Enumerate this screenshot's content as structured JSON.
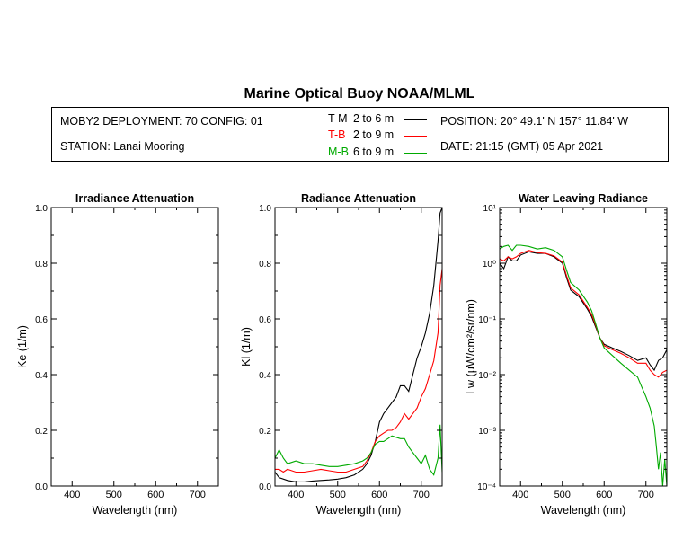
{
  "header": {
    "title": "Marine Optical Buoy NOAA/MLML",
    "deployment": "MOBY2 DEPLOYMENT: 70 CONFIG: 01",
    "station": "STATION: Lanai Mooring",
    "position": "POSITION: 20° 49.1' N   157° 11.84' W",
    "date": "DATE: 21:15 (GMT) 05 Apr 2021"
  },
  "legend": [
    {
      "label": "T-M",
      "range": "2 to 6  m",
      "color": "#000000"
    },
    {
      "label": "T-B",
      "range": "2 to 9  m",
      "color": "#ff0000"
    },
    {
      "label": "M-B",
      "range": "6 to 9  m",
      "color": "#00aa00"
    }
  ],
  "chart_data": [
    {
      "type": "line",
      "title": "Irradiance Attenuation",
      "xlabel": "Wavelength (nm)",
      "ylabel": "Ke  (1/m)",
      "xlim": [
        350,
        750
      ],
      "ylim": [
        0,
        1
      ],
      "xticks": [
        "400",
        "500",
        "600",
        "700"
      ],
      "yticks": [
        "0.0",
        "0.2",
        "0.4",
        "0.6",
        "0.8",
        "1.0"
      ],
      "series": []
    },
    {
      "type": "line",
      "title": "Radiance Attenuation",
      "xlabel": "Wavelength (nm)",
      "ylabel": "Kl  (1/m)",
      "xlim": [
        350,
        750
      ],
      "ylim": [
        0,
        1
      ],
      "xticks": [
        "400",
        "500",
        "600",
        "700"
      ],
      "yticks": [
        "0.0",
        "0.2",
        "0.4",
        "0.6",
        "0.8",
        "1.0"
      ],
      "series": [
        {
          "name": "T-M",
          "color": "#000000",
          "x": [
            350,
            360,
            380,
            400,
            420,
            440,
            460,
            480,
            500,
            520,
            540,
            560,
            570,
            580,
            590,
            600,
            610,
            620,
            630,
            640,
            650,
            660,
            670,
            680,
            690,
            700,
            710,
            720,
            730,
            740,
            745,
            750
          ],
          "y": [
            0.05,
            0.03,
            0.02,
            0.015,
            0.015,
            0.018,
            0.02,
            0.022,
            0.025,
            0.03,
            0.04,
            0.06,
            0.08,
            0.11,
            0.16,
            0.23,
            0.26,
            0.28,
            0.3,
            0.32,
            0.36,
            0.36,
            0.34,
            0.4,
            0.46,
            0.5,
            0.55,
            0.62,
            0.72,
            0.88,
            0.98,
            1.0
          ]
        },
        {
          "name": "T-B",
          "color": "#ff0000",
          "x": [
            350,
            360,
            370,
            380,
            400,
            420,
            440,
            460,
            480,
            500,
            520,
            540,
            560,
            570,
            580,
            590,
            600,
            610,
            620,
            630,
            640,
            650,
            660,
            670,
            680,
            690,
            700,
            710,
            720,
            730,
            740,
            745,
            750
          ],
          "y": [
            0.06,
            0.06,
            0.05,
            0.06,
            0.05,
            0.05,
            0.055,
            0.06,
            0.055,
            0.05,
            0.05,
            0.06,
            0.07,
            0.09,
            0.12,
            0.16,
            0.18,
            0.19,
            0.2,
            0.2,
            0.21,
            0.23,
            0.26,
            0.24,
            0.26,
            0.28,
            0.32,
            0.35,
            0.4,
            0.45,
            0.55,
            0.72,
            0.78
          ]
        },
        {
          "name": "M-B",
          "color": "#00aa00",
          "x": [
            350,
            360,
            370,
            380,
            400,
            420,
            440,
            460,
            480,
            500,
            520,
            540,
            560,
            570,
            580,
            590,
            600,
            610,
            620,
            630,
            640,
            650,
            660,
            670,
            680,
            690,
            700,
            710,
            720,
            730,
            740,
            745,
            750
          ],
          "y": [
            0.1,
            0.13,
            0.1,
            0.08,
            0.09,
            0.08,
            0.08,
            0.075,
            0.07,
            0.07,
            0.075,
            0.08,
            0.09,
            0.1,
            0.12,
            0.15,
            0.16,
            0.16,
            0.17,
            0.18,
            0.175,
            0.17,
            0.17,
            0.14,
            0.12,
            0.1,
            0.08,
            0.11,
            0.06,
            0.04,
            0.1,
            0.22,
            0.05
          ]
        }
      ]
    },
    {
      "type": "line",
      "title": "Water Leaving Radiance",
      "xlabel": "Wavelength (nm)",
      "ylabel": "Lw  (μW/cm²/sr/nm)",
      "yscale": "log",
      "xlim": [
        350,
        750
      ],
      "ylim": [
        0.0001,
        10
      ],
      "xticks": [
        "400",
        "500",
        "600",
        "700"
      ],
      "yticks": [
        "10⁻⁴",
        "10⁻³",
        "10⁻²",
        "10⁻¹",
        "10⁰",
        "10¹"
      ],
      "series": [
        {
          "name": "T-M",
          "color": "#000000",
          "x": [
            350,
            360,
            370,
            380,
            390,
            400,
            420,
            440,
            460,
            480,
            500,
            510,
            520,
            540,
            560,
            570,
            580,
            590,
            600,
            620,
            640,
            660,
            680,
            700,
            710,
            720,
            730,
            740,
            750
          ],
          "y": [
            1.0,
            0.8,
            1.3,
            1.1,
            1.1,
            1.4,
            1.6,
            1.5,
            1.5,
            1.3,
            1.0,
            0.55,
            0.33,
            0.25,
            0.15,
            0.11,
            0.07,
            0.045,
            0.035,
            0.03,
            0.026,
            0.022,
            0.018,
            0.02,
            0.015,
            0.012,
            0.018,
            0.02,
            0.028
          ]
        },
        {
          "name": "T-B",
          "color": "#ff0000",
          "x": [
            350,
            360,
            370,
            380,
            390,
            400,
            420,
            440,
            460,
            480,
            500,
            510,
            520,
            540,
            560,
            570,
            580,
            590,
            600,
            620,
            640,
            660,
            680,
            700,
            710,
            720,
            730,
            740,
            750
          ],
          "y": [
            1.2,
            1.1,
            1.3,
            1.2,
            1.3,
            1.5,
            1.7,
            1.55,
            1.5,
            1.35,
            1.05,
            0.6,
            0.36,
            0.27,
            0.16,
            0.12,
            0.075,
            0.045,
            0.033,
            0.028,
            0.024,
            0.02,
            0.016,
            0.016,
            0.012,
            0.01,
            0.009,
            0.011,
            0.012
          ]
        },
        {
          "name": "M-B",
          "color": "#00aa00",
          "x": [
            350,
            360,
            370,
            380,
            390,
            400,
            420,
            440,
            460,
            480,
            500,
            510,
            520,
            540,
            560,
            570,
            580,
            590,
            600,
            620,
            640,
            660,
            680,
            690,
            700,
            710,
            720,
            725,
            730,
            735,
            740,
            745,
            750
          ],
          "y": [
            1.8,
            2.0,
            2.1,
            1.7,
            2.1,
            2.1,
            2.0,
            1.8,
            1.9,
            1.7,
            1.3,
            0.75,
            0.45,
            0.33,
            0.2,
            0.14,
            0.08,
            0.045,
            0.03,
            0.022,
            0.016,
            0.012,
            0.009,
            0.006,
            0.004,
            0.0025,
            0.0012,
            0.0005,
            0.0002,
            0.0004,
            0.0001,
            0.0003,
            0.0001
          ]
        }
      ]
    }
  ]
}
